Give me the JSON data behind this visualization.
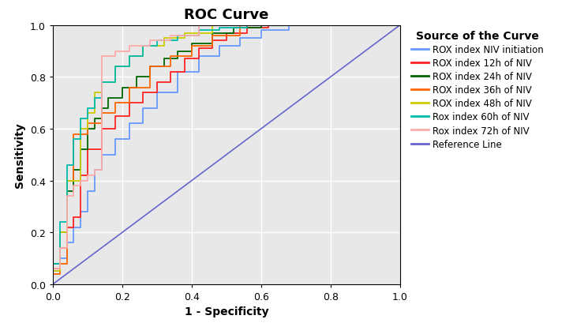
{
  "title": "ROC Curve",
  "xlabel": "1 - Specificity",
  "ylabel": "Sensitivity",
  "legend_title": "Source of the Curve",
  "legend_labels": [
    "ROX index NIV initiation",
    "ROX index 12h of NIV",
    "ROX index 24h of NIV",
    "ROX index 36h of NIV",
    "ROX index 48h of NIV",
    "Rox index 60h of NIV",
    "Rox index 72h of NIV",
    "Reference Line"
  ],
  "colors": {
    "blue": "#6699FF",
    "red": "#FF2222",
    "dark_green": "#006600",
    "orange": "#FF6600",
    "yellow_green": "#CCCC00",
    "teal": "#00BBAA",
    "pink": "#FFAAAA",
    "purple": "#6666CC"
  },
  "curves": {
    "blue": {
      "fpr": [
        0.0,
        0.0,
        0.02,
        0.02,
        0.04,
        0.04,
        0.06,
        0.06,
        0.08,
        0.08,
        0.1,
        0.1,
        0.12,
        0.12,
        0.14,
        0.14,
        0.18,
        0.18,
        0.22,
        0.22,
        0.26,
        0.26,
        0.3,
        0.3,
        0.36,
        0.36,
        0.42,
        0.42,
        0.48,
        0.48,
        0.54,
        0.54,
        0.6,
        0.6,
        0.68,
        0.68,
        0.76,
        0.76,
        1.0
      ],
      "tpr": [
        0.0,
        0.05,
        0.05,
        0.1,
        0.1,
        0.16,
        0.16,
        0.22,
        0.22,
        0.28,
        0.28,
        0.36,
        0.36,
        0.44,
        0.44,
        0.5,
        0.5,
        0.56,
        0.56,
        0.62,
        0.62,
        0.68,
        0.68,
        0.74,
        0.74,
        0.82,
        0.82,
        0.88,
        0.88,
        0.92,
        0.92,
        0.95,
        0.95,
        0.98,
        0.98,
        1.0,
        1.0,
        1.0,
        1.0
      ]
    },
    "red": {
      "fpr": [
        0.0,
        0.0,
        0.02,
        0.02,
        0.04,
        0.04,
        0.06,
        0.06,
        0.08,
        0.08,
        0.1,
        0.1,
        0.14,
        0.14,
        0.18,
        0.18,
        0.22,
        0.22,
        0.26,
        0.26,
        0.3,
        0.3,
        0.34,
        0.34,
        0.38,
        0.38,
        0.42,
        0.42,
        0.46,
        0.46,
        0.5,
        0.5,
        0.56,
        0.56,
        0.62,
        0.62,
        1.0
      ],
      "tpr": [
        0.0,
        0.06,
        0.06,
        0.14,
        0.14,
        0.22,
        0.22,
        0.26,
        0.26,
        0.42,
        0.42,
        0.52,
        0.52,
        0.6,
        0.6,
        0.65,
        0.65,
        0.7,
        0.7,
        0.74,
        0.74,
        0.78,
        0.78,
        0.82,
        0.82,
        0.87,
        0.87,
        0.91,
        0.91,
        0.94,
        0.94,
        0.97,
        0.97,
        0.99,
        0.99,
        1.0,
        1.0
      ]
    },
    "dark_green": {
      "fpr": [
        0.0,
        0.0,
        0.02,
        0.02,
        0.04,
        0.04,
        0.06,
        0.06,
        0.08,
        0.08,
        0.1,
        0.1,
        0.12,
        0.12,
        0.14,
        0.14,
        0.16,
        0.16,
        0.2,
        0.2,
        0.24,
        0.24,
        0.28,
        0.28,
        0.32,
        0.32,
        0.36,
        0.36,
        0.4,
        0.4,
        0.46,
        0.46,
        0.52,
        0.52,
        0.6,
        0.6,
        1.0
      ],
      "tpr": [
        0.0,
        0.08,
        0.08,
        0.2,
        0.2,
        0.36,
        0.36,
        0.44,
        0.44,
        0.52,
        0.52,
        0.6,
        0.6,
        0.64,
        0.64,
        0.68,
        0.68,
        0.72,
        0.72,
        0.76,
        0.76,
        0.8,
        0.8,
        0.84,
        0.84,
        0.87,
        0.87,
        0.9,
        0.9,
        0.93,
        0.93,
        0.97,
        0.97,
        0.99,
        0.99,
        1.0,
        1.0
      ]
    },
    "orange": {
      "fpr": [
        0.0,
        0.0,
        0.02,
        0.02,
        0.04,
        0.04,
        0.06,
        0.06,
        0.1,
        0.1,
        0.14,
        0.14,
        0.18,
        0.18,
        0.22,
        0.22,
        0.28,
        0.28,
        0.34,
        0.34,
        0.4,
        0.4,
        0.46,
        0.46,
        0.54,
        0.54,
        1.0
      ],
      "tpr": [
        0.0,
        0.04,
        0.04,
        0.08,
        0.08,
        0.4,
        0.4,
        0.58,
        0.58,
        0.62,
        0.62,
        0.66,
        0.66,
        0.7,
        0.7,
        0.76,
        0.76,
        0.84,
        0.84,
        0.88,
        0.88,
        0.92,
        0.92,
        0.96,
        0.96,
        1.0,
        1.0
      ]
    },
    "yellow_green": {
      "fpr": [
        0.0,
        0.0,
        0.02,
        0.02,
        0.04,
        0.04,
        0.08,
        0.08,
        0.1,
        0.1,
        0.12,
        0.12,
        0.14,
        0.14,
        0.18,
        0.18,
        0.22,
        0.22,
        0.26,
        0.26,
        0.32,
        0.32,
        0.38,
        0.38,
        0.46,
        0.46,
        1.0
      ],
      "tpr": [
        0.0,
        0.05,
        0.05,
        0.2,
        0.2,
        0.4,
        0.4,
        0.6,
        0.6,
        0.66,
        0.66,
        0.74,
        0.74,
        0.78,
        0.78,
        0.84,
        0.84,
        0.88,
        0.88,
        0.92,
        0.92,
        0.95,
        0.95,
        0.97,
        0.97,
        1.0,
        1.0
      ]
    },
    "teal": {
      "fpr": [
        0.0,
        0.0,
        0.02,
        0.02,
        0.04,
        0.04,
        0.06,
        0.06,
        0.08,
        0.08,
        0.1,
        0.1,
        0.12,
        0.12,
        0.14,
        0.14,
        0.18,
        0.18,
        0.22,
        0.22,
        0.26,
        0.26,
        0.3,
        0.3,
        0.36,
        0.36,
        0.42,
        0.42,
        0.48,
        0.48,
        0.56,
        0.56,
        0.64,
        0.64,
        1.0
      ],
      "tpr": [
        0.0,
        0.08,
        0.08,
        0.24,
        0.24,
        0.46,
        0.46,
        0.56,
        0.56,
        0.64,
        0.64,
        0.68,
        0.68,
        0.72,
        0.72,
        0.78,
        0.78,
        0.84,
        0.84,
        0.88,
        0.88,
        0.92,
        0.92,
        0.94,
        0.94,
        0.96,
        0.96,
        0.98,
        0.98,
        0.99,
        0.99,
        1.0,
        1.0,
        1.0,
        1.0
      ]
    },
    "pink": {
      "fpr": [
        0.0,
        0.0,
        0.02,
        0.02,
        0.04,
        0.04,
        0.06,
        0.06,
        0.08,
        0.08,
        0.1,
        0.1,
        0.12,
        0.12,
        0.14,
        0.14,
        0.18,
        0.18,
        0.22,
        0.22,
        0.28,
        0.28,
        0.34,
        0.34,
        0.42,
        0.42,
        1.0
      ],
      "tpr": [
        0.0,
        0.06,
        0.06,
        0.14,
        0.14,
        0.34,
        0.34,
        0.38,
        0.38,
        0.4,
        0.4,
        0.42,
        0.42,
        0.44,
        0.44,
        0.88,
        0.88,
        0.9,
        0.9,
        0.92,
        0.92,
        0.94,
        0.94,
        0.96,
        0.96,
        1.0,
        1.0
      ]
    }
  },
  "plot_bg_color": "#e8e8e8",
  "fig_bg_color": "#ffffff",
  "grid_color": "#ffffff",
  "axis_color": "#000000",
  "title_fontsize": 13,
  "label_fontsize": 10,
  "tick_fontsize": 9,
  "legend_fontsize": 8.5,
  "legend_title_fontsize": 10
}
